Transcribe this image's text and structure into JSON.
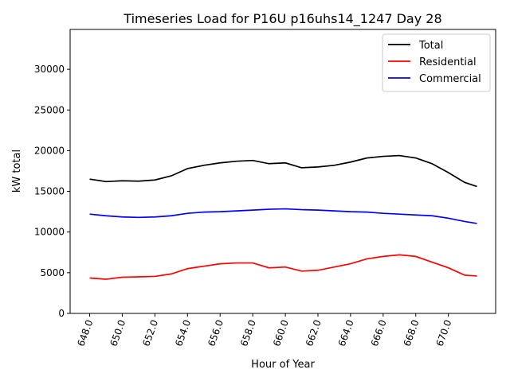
{
  "chart_data": {
    "type": "line",
    "title": "Timeseries Load for P16U p16uhs14_1247  Day 28",
    "xlabel": "Hour of Year",
    "ylabel": "kW total",
    "xlim": [
      646.8,
      672.9
    ],
    "ylim": [
      0,
      34900
    ],
    "xticks": [
      648,
      650,
      652,
      654,
      656,
      658,
      660,
      662,
      664,
      666,
      668,
      670
    ],
    "xtick_labels": [
      "648.0",
      "650.0",
      "652.0",
      "654.0",
      "656.0",
      "658.0",
      "660.0",
      "662.0",
      "664.0",
      "666.0",
      "668.0",
      "670.0"
    ],
    "yticks": [
      0,
      5000,
      10000,
      15000,
      20000,
      25000,
      30000
    ],
    "ytick_labels": [
      "0",
      "5000",
      "10000",
      "15000",
      "20000",
      "25000",
      "30000"
    ],
    "legend_position": "top-right",
    "x": [
      648,
      649,
      650,
      651,
      652,
      653,
      654,
      655,
      656,
      657,
      658,
      659,
      660,
      661,
      662,
      663,
      664,
      665,
      666,
      667,
      668,
      669,
      670,
      671,
      671.75
    ],
    "series": [
      {
        "name": "Total",
        "color": "#000000",
        "values": [
          16500,
          16200,
          16300,
          16250,
          16400,
          16900,
          17800,
          18200,
          18500,
          18700,
          18800,
          18400,
          18500,
          17900,
          18000,
          18200,
          18600,
          19100,
          19300,
          19400,
          19100,
          18400,
          17300,
          16100,
          15600
        ]
      },
      {
        "name": "Residential",
        "color": "#ff0000",
        "values": [
          4350,
          4200,
          4450,
          4500,
          4550,
          4850,
          5500,
          5800,
          6100,
          6200,
          6200,
          5600,
          5700,
          5200,
          5300,
          5700,
          6100,
          6700,
          7000,
          7200,
          7000,
          6300,
          5600,
          4700,
          4600
        ]
      },
      {
        "name": "Commercial",
        "color": "#0000ff",
        "values": [
          12200,
          12000,
          11850,
          11800,
          11850,
          12000,
          12300,
          12450,
          12500,
          12600,
          12700,
          12800,
          12850,
          12750,
          12700,
          12600,
          12500,
          12450,
          12300,
          12200,
          12100,
          12000,
          11700,
          11300,
          11050
        ]
      }
    ]
  }
}
